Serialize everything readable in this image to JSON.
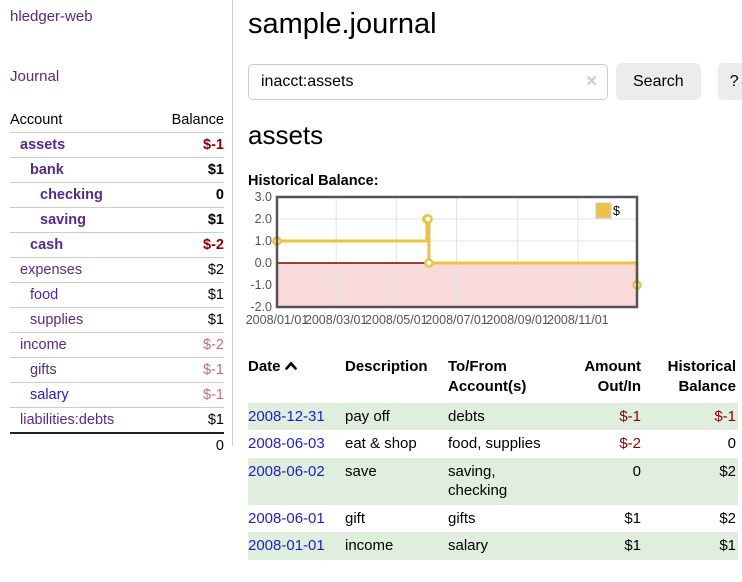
{
  "app": {
    "brand": "hledger-web"
  },
  "sidebar": {
    "journal_link": "Journal",
    "table": {
      "account_header": "Account",
      "balance_header": "Balance",
      "rows": [
        {
          "name": "assets",
          "balance": "$-1"
        },
        {
          "name": "bank",
          "balance": "$1"
        },
        {
          "name": "checking",
          "balance": "0"
        },
        {
          "name": "saving",
          "balance": "$1"
        },
        {
          "name": "cash",
          "balance": "$-2"
        },
        {
          "name": "expenses",
          "balance": "$2"
        },
        {
          "name": "food",
          "balance": "$1"
        },
        {
          "name": "supplies",
          "balance": "$1"
        },
        {
          "name": "income",
          "balance": "$-2"
        },
        {
          "name": "gifts",
          "balance": "$-1"
        },
        {
          "name": "salary",
          "balance": "$-1"
        },
        {
          "name": "liabilities:debts",
          "balance": "$1"
        }
      ],
      "total": "0"
    }
  },
  "main": {
    "title": "sample.journal",
    "search": {
      "value": "inacct:assets",
      "clear_icon": "✕",
      "button_label": "Search",
      "help_label": "?"
    },
    "heading": "assets"
  },
  "chart_data": {
    "type": "line",
    "step": true,
    "title": "Historical Balance:",
    "legend_position": "top-right",
    "series": [
      {
        "name": "$",
        "color": "#edc240",
        "points": [
          [
            "2008-01-01",
            1
          ],
          [
            "2008-06-01",
            2
          ],
          [
            "2008-06-02",
            2
          ],
          [
            "2008-06-03",
            0
          ],
          [
            "2008-12-31",
            -1
          ]
        ]
      }
    ],
    "xlim": [
      "2008-01-01",
      "2008-12-31"
    ],
    "ylim": [
      -2,
      3
    ],
    "x_ticks": [
      {
        "d": "2008-01-01",
        "label": "2008/01/01"
      },
      {
        "d": "2008-03-01",
        "label": "2008/03/01"
      },
      {
        "d": "2008-05-01",
        "label": "2008/05/01"
      },
      {
        "d": "2008-07-01",
        "label": "2008/07/01"
      },
      {
        "d": "2008-09-01",
        "label": "2008/09/01"
      },
      {
        "d": "2008-11-01",
        "label": "2008/11/01"
      }
    ],
    "y_ticks": [
      {
        "v": 3,
        "label": "3.0"
      },
      {
        "v": 2,
        "label": "2.0"
      },
      {
        "v": 1,
        "label": "1.0"
      },
      {
        "v": 0,
        "label": "0.0"
      },
      {
        "v": -1,
        "label": "-1.0"
      },
      {
        "v": -2,
        "label": "-2.0"
      }
    ],
    "grid": true,
    "negative_region_color": "#f9dada",
    "zero_line_color": "#8b0000"
  },
  "register": {
    "headers": {
      "date": "Date",
      "description": "Description",
      "accounts": "To/From Account(s)",
      "amount": "Amount Out/In",
      "balance": "Historical Balance"
    },
    "rows": [
      {
        "date": "2008-12-31",
        "description": "pay off",
        "accounts": "debts",
        "amount": "$-1",
        "balance": "$-1"
      },
      {
        "date": "2008-06-03",
        "description": "eat & shop",
        "accounts": "food, supplies",
        "amount": "$-2",
        "balance": "0"
      },
      {
        "date": "2008-06-02",
        "description": "save",
        "accounts": "saving, checking",
        "amount": "0",
        "balance": "$2"
      },
      {
        "date": "2008-06-01",
        "description": "gift",
        "accounts": "gifts",
        "amount": "$1",
        "balance": "$2"
      },
      {
        "date": "2008-01-01",
        "description": "income",
        "accounts": "salary",
        "amount": "$1",
        "balance": "$1"
      }
    ]
  },
  "colors": {
    "purple": "#552a90",
    "link_blue": "#1d1dcf",
    "negative_strong": "#8b0000",
    "negative_soft": "#c17070",
    "row_stripe_green": "#dfeedd",
    "accent_yellow": "#edc240"
  }
}
